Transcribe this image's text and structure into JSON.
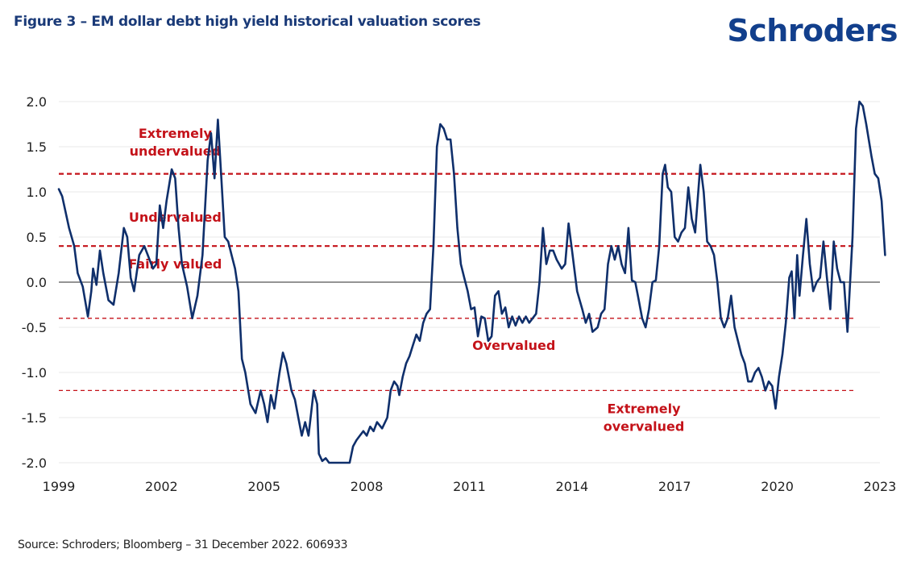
{
  "header": {
    "title": "Figure 3 – EM dollar debt high yield historical valuation scores",
    "brand": "Schroders"
  },
  "footer": {
    "source": "Source: Schroders; Bloomberg – 31 December 2022. 606933"
  },
  "colors": {
    "title": "#1a3a78",
    "brand": "#123f8c",
    "series": "#0f2f6b",
    "threshold": "#c41219",
    "zero_line": "#555555",
    "grid": "#e8e8e8"
  },
  "chart_data": {
    "type": "line",
    "title": "EM dollar debt high yield historical valuation scores",
    "xlabel": "",
    "ylabel": "",
    "xlim": [
      1999,
      2023
    ],
    "ylim": [
      -2.0,
      2.0
    ],
    "grid": true,
    "x_ticks": [
      "1999",
      "2002",
      "2005",
      "2008",
      "2011",
      "2014",
      "2017",
      "2020",
      "2023"
    ],
    "y_ticks": [
      "2.0",
      "1.5",
      "1.0",
      "0.5",
      "0.0",
      "-0.5",
      "-1.0",
      "-1.5",
      "-2.0"
    ],
    "thresholds": [
      {
        "name": "extremely-undervalued-threshold",
        "value": 1.2
      },
      {
        "name": "undervalued-threshold",
        "value": 0.4
      },
      {
        "name": "overvalued-threshold",
        "value": -0.4
      },
      {
        "name": "extremely-overvalued-threshold",
        "value": -1.2
      }
    ],
    "zones": [
      {
        "label1": "Extremely",
        "label2": "undervalued",
        "x": 2002.4,
        "y": 1.6
      },
      {
        "label1": "Undervalued",
        "label2": "",
        "x": 2002.4,
        "y": 0.67
      },
      {
        "label1": "Fairly valued",
        "label2": "",
        "x": 2002.4,
        "y": 0.15
      },
      {
        "label1": "Overvalued",
        "label2": "",
        "x": 2012.3,
        "y": -0.75
      },
      {
        "label1": "Extremely",
        "label2": "overvalued",
        "x": 2016.1,
        "y": -1.45
      }
    ],
    "series": [
      {
        "name": "Valuation score",
        "points": [
          [
            1999.0,
            1.03
          ],
          [
            1999.1,
            0.95
          ],
          [
            1999.3,
            0.6
          ],
          [
            1999.45,
            0.4
          ],
          [
            1999.55,
            0.1
          ],
          [
            1999.7,
            -0.05
          ],
          [
            1999.85,
            -0.38
          ],
          [
            1999.95,
            -0.1
          ],
          [
            2000.0,
            0.15
          ],
          [
            2000.1,
            -0.03
          ],
          [
            2000.2,
            0.35
          ],
          [
            2000.3,
            0.1
          ],
          [
            2000.45,
            -0.2
          ],
          [
            2000.6,
            -0.25
          ],
          [
            2000.75,
            0.1
          ],
          [
            2000.9,
            0.6
          ],
          [
            2001.0,
            0.5
          ],
          [
            2001.1,
            0.05
          ],
          [
            2001.2,
            -0.1
          ],
          [
            2001.35,
            0.3
          ],
          [
            2001.5,
            0.4
          ],
          [
            2001.6,
            0.3
          ],
          [
            2001.75,
            0.15
          ],
          [
            2001.85,
            0.2
          ],
          [
            2001.95,
            0.85
          ],
          [
            2002.05,
            0.6
          ],
          [
            2002.15,
            0.9
          ],
          [
            2002.3,
            1.25
          ],
          [
            2002.4,
            1.15
          ],
          [
            2002.5,
            0.6
          ],
          [
            2002.6,
            0.2
          ],
          [
            2002.75,
            -0.05
          ],
          [
            2002.9,
            -0.4
          ],
          [
            2003.05,
            -0.15
          ],
          [
            2003.2,
            0.3
          ],
          [
            2003.35,
            1.35
          ],
          [
            2003.45,
            1.65
          ],
          [
            2003.55,
            1.15
          ],
          [
            2003.65,
            1.8
          ],
          [
            2003.75,
            1.15
          ],
          [
            2003.85,
            0.5
          ],
          [
            2003.95,
            0.45
          ],
          [
            2004.05,
            0.3
          ],
          [
            2004.15,
            0.15
          ],
          [
            2004.25,
            -0.1
          ],
          [
            2004.35,
            -0.85
          ],
          [
            2004.45,
            -1.0
          ],
          [
            2004.6,
            -1.35
          ],
          [
            2004.75,
            -1.45
          ],
          [
            2004.9,
            -1.2
          ],
          [
            2005.0,
            -1.35
          ],
          [
            2005.1,
            -1.55
          ],
          [
            2005.2,
            -1.25
          ],
          [
            2005.3,
            -1.4
          ],
          [
            2005.45,
            -1.0
          ],
          [
            2005.55,
            -0.78
          ],
          [
            2005.65,
            -0.9
          ],
          [
            2005.8,
            -1.2
          ],
          [
            2005.9,
            -1.3
          ],
          [
            2006.0,
            -1.5
          ],
          [
            2006.1,
            -1.7
          ],
          [
            2006.2,
            -1.55
          ],
          [
            2006.3,
            -1.7
          ],
          [
            2006.45,
            -1.2
          ],
          [
            2006.55,
            -1.35
          ],
          [
            2006.6,
            -1.9
          ],
          [
            2006.7,
            -1.98
          ],
          [
            2006.8,
            -1.95
          ],
          [
            2006.9,
            -2.0
          ],
          [
            2007.5,
            -2.0
          ],
          [
            2007.6,
            -1.82
          ],
          [
            2007.7,
            -1.75
          ],
          [
            2007.8,
            -1.7
          ],
          [
            2007.9,
            -1.65
          ],
          [
            2008.0,
            -1.7
          ],
          [
            2008.1,
            -1.6
          ],
          [
            2008.2,
            -1.65
          ],
          [
            2008.3,
            -1.55
          ],
          [
            2008.45,
            -1.62
          ],
          [
            2008.6,
            -1.5
          ],
          [
            2008.7,
            -1.2
          ],
          [
            2008.8,
            -1.1
          ],
          [
            2008.9,
            -1.15
          ],
          [
            2008.95,
            -1.25
          ],
          [
            2009.05,
            -1.05
          ],
          [
            2009.15,
            -0.9
          ],
          [
            2009.25,
            -0.82
          ],
          [
            2009.35,
            -0.7
          ],
          [
            2009.45,
            -0.58
          ],
          [
            2009.55,
            -0.65
          ],
          [
            2009.65,
            -0.45
          ],
          [
            2009.75,
            -0.35
          ],
          [
            2009.85,
            -0.3
          ],
          [
            2009.95,
            0.4
          ],
          [
            2010.05,
            1.5
          ],
          [
            2010.15,
            1.75
          ],
          [
            2010.25,
            1.7
          ],
          [
            2010.35,
            1.58
          ],
          [
            2010.45,
            1.58
          ],
          [
            2010.55,
            1.2
          ],
          [
            2010.65,
            0.6
          ],
          [
            2010.75,
            0.2
          ],
          [
            2010.85,
            0.05
          ],
          [
            2010.95,
            -0.1
          ],
          [
            2011.05,
            -0.3
          ],
          [
            2011.15,
            -0.28
          ],
          [
            2011.25,
            -0.6
          ],
          [
            2011.35,
            -0.38
          ],
          [
            2011.45,
            -0.4
          ],
          [
            2011.55,
            -0.65
          ],
          [
            2011.65,
            -0.6
          ],
          [
            2011.75,
            -0.15
          ],
          [
            2011.85,
            -0.1
          ],
          [
            2011.95,
            -0.35
          ],
          [
            2012.05,
            -0.28
          ],
          [
            2012.15,
            -0.5
          ],
          [
            2012.25,
            -0.38
          ],
          [
            2012.35,
            -0.48
          ],
          [
            2012.45,
            -0.38
          ],
          [
            2012.55,
            -0.45
          ],
          [
            2012.65,
            -0.38
          ],
          [
            2012.75,
            -0.45
          ],
          [
            2012.85,
            -0.4
          ],
          [
            2012.95,
            -0.35
          ],
          [
            2013.05,
            0.0
          ],
          [
            2013.15,
            0.6
          ],
          [
            2013.25,
            0.2
          ],
          [
            2013.35,
            0.35
          ],
          [
            2013.45,
            0.35
          ],
          [
            2013.55,
            0.25
          ],
          [
            2013.7,
            0.15
          ],
          [
            2013.8,
            0.2
          ],
          [
            2013.9,
            0.65
          ],
          [
            2014.0,
            0.35
          ],
          [
            2014.15,
            -0.1
          ],
          [
            2014.3,
            -0.3
          ],
          [
            2014.4,
            -0.45
          ],
          [
            2014.5,
            -0.35
          ],
          [
            2014.6,
            -0.55
          ],
          [
            2014.75,
            -0.5
          ],
          [
            2014.85,
            -0.35
          ],
          [
            2014.95,
            -0.3
          ],
          [
            2015.05,
            0.2
          ],
          [
            2015.15,
            0.4
          ],
          [
            2015.25,
            0.25
          ],
          [
            2015.35,
            0.4
          ],
          [
            2015.45,
            0.2
          ],
          [
            2015.55,
            0.1
          ],
          [
            2015.65,
            0.6
          ],
          [
            2015.75,
            0.02
          ],
          [
            2015.85,
            0.0
          ],
          [
            2015.95,
            -0.2
          ],
          [
            2016.05,
            -0.4
          ],
          [
            2016.15,
            -0.5
          ],
          [
            2016.25,
            -0.3
          ],
          [
            2016.35,
            0.0
          ],
          [
            2016.45,
            0.02
          ],
          [
            2016.55,
            0.4
          ],
          [
            2016.65,
            1.2
          ],
          [
            2016.72,
            1.3
          ],
          [
            2016.8,
            1.05
          ],
          [
            2016.9,
            1.0
          ],
          [
            2017.0,
            0.5
          ],
          [
            2017.1,
            0.45
          ],
          [
            2017.2,
            0.55
          ],
          [
            2017.3,
            0.6
          ],
          [
            2017.4,
            1.05
          ],
          [
            2017.5,
            0.7
          ],
          [
            2017.6,
            0.55
          ],
          [
            2017.75,
            1.3
          ],
          [
            2017.85,
            1.0
          ],
          [
            2017.95,
            0.45
          ],
          [
            2018.05,
            0.4
          ],
          [
            2018.15,
            0.3
          ],
          [
            2018.25,
            0.0
          ],
          [
            2018.35,
            -0.4
          ],
          [
            2018.45,
            -0.5
          ],
          [
            2018.55,
            -0.4
          ],
          [
            2018.65,
            -0.15
          ],
          [
            2018.75,
            -0.5
          ],
          [
            2018.85,
            -0.65
          ],
          [
            2018.95,
            -0.8
          ],
          [
            2019.05,
            -0.9
          ],
          [
            2019.15,
            -1.1
          ],
          [
            2019.25,
            -1.1
          ],
          [
            2019.35,
            -1.0
          ],
          [
            2019.45,
            -0.95
          ],
          [
            2019.55,
            -1.05
          ],
          [
            2019.65,
            -1.2
          ],
          [
            2019.75,
            -1.1
          ],
          [
            2019.85,
            -1.15
          ],
          [
            2019.95,
            -1.4
          ],
          [
            2020.05,
            -1.05
          ],
          [
            2020.15,
            -0.8
          ],
          [
            2020.25,
            -0.45
          ],
          [
            2020.35,
            0.05
          ],
          [
            2020.42,
            0.12
          ],
          [
            2020.5,
            -0.4
          ],
          [
            2020.58,
            0.3
          ],
          [
            2020.65,
            -0.15
          ],
          [
            2020.75,
            0.3
          ],
          [
            2020.85,
            0.7
          ],
          [
            2020.95,
            0.2
          ],
          [
            2021.05,
            -0.1
          ],
          [
            2021.15,
            0.0
          ],
          [
            2021.25,
            0.05
          ],
          [
            2021.35,
            0.45
          ],
          [
            2021.45,
            0.05
          ],
          [
            2021.55,
            -0.3
          ],
          [
            2021.65,
            0.45
          ],
          [
            2021.75,
            0.15
          ],
          [
            2021.85,
            0.0
          ],
          [
            2021.95,
            0.0
          ],
          [
            2022.05,
            -0.55
          ],
          [
            2022.2,
            0.5
          ],
          [
            2022.3,
            1.7
          ],
          [
            2022.4,
            2.0
          ],
          [
            2022.5,
            1.95
          ],
          [
            2022.6,
            1.75
          ],
          [
            2022.75,
            1.4
          ],
          [
            2022.85,
            1.2
          ],
          [
            2022.95,
            1.15
          ],
          [
            2023.05,
            0.9
          ],
          [
            2023.15,
            0.3
          ]
        ]
      }
    ]
  }
}
